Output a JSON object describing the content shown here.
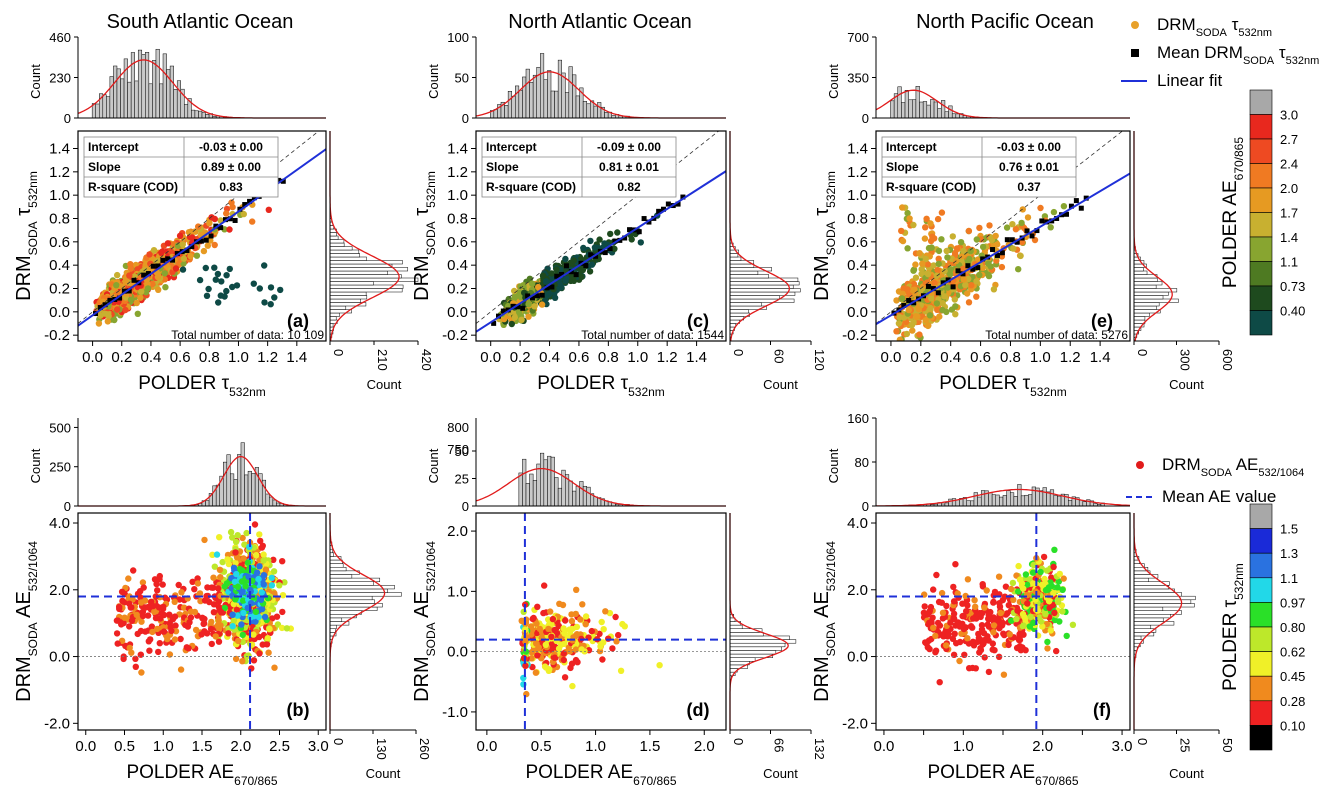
{
  "chart_data": [
    {
      "panel": "(a)",
      "title": "South Atlantic Ocean",
      "type": "scatter",
      "xlabel": "POLDER τ532nm",
      "ylabel": "DRMSODA τ532nm",
      "xlim": [
        -0.1,
        1.6
      ],
      "ylim": [
        -0.25,
        1.55
      ],
      "xticks": [
        0.0,
        0.2,
        0.4,
        0.6,
        0.8,
        1.0,
        1.2,
        1.4
      ],
      "yticks": [
        -0.2,
        0.0,
        0.2,
        0.4,
        0.6,
        0.8,
        1.0,
        1.2,
        1.4
      ],
      "fit_table": {
        "rows": [
          [
            "Intercept",
            "-0.03 ± 0.00"
          ],
          [
            "Slope",
            "0.89 ± 0.00"
          ],
          [
            "R-square (COD)",
            "0.83"
          ]
        ]
      },
      "fit_line": {
        "intercept": -0.03,
        "slope": 0.89
      },
      "total_label": "Total number of data: 10 109",
      "top_hist": {
        "ylabel": "Count",
        "yticks": [
          0,
          230,
          460
        ],
        "ymax": 460,
        "peak_x": 0.35,
        "peak_y": 330,
        "sigma": 0.2
      },
      "right_hist": {
        "xlabel": "Count",
        "xticks": [
          0,
          210,
          420
        ],
        "xmax": 420,
        "peak_y": 0.3,
        "peak_x": 330,
        "sigma": 0.18
      }
    },
    {
      "panel": "(c)",
      "title": "North Atlantic Ocean",
      "type": "scatter",
      "xlabel": "POLDER τ532nm",
      "ylabel": "DRMSODA τ532nm",
      "xlim": [
        -0.1,
        1.6
      ],
      "ylim": [
        -0.25,
        1.55
      ],
      "xticks": [
        0.0,
        0.2,
        0.4,
        0.6,
        0.8,
        1.0,
        1.2,
        1.4
      ],
      "yticks": [
        -0.2,
        0.0,
        0.2,
        0.4,
        0.6,
        0.8,
        1.0,
        1.2,
        1.4
      ],
      "fit_table": {
        "rows": [
          [
            "Intercept",
            "-0.09 ± 0.00"
          ],
          [
            "Slope",
            "0.81 ± 0.01"
          ],
          [
            "R-square (COD)",
            "0.82"
          ]
        ]
      },
      "fit_line": {
        "intercept": -0.09,
        "slope": 0.81
      },
      "total_label": "Total number of data: 1544",
      "top_hist": {
        "ylabel": "Count",
        "yticks": [
          0,
          50,
          100
        ],
        "ymax": 100,
        "peak_x": 0.4,
        "peak_y": 57,
        "sigma": 0.2
      },
      "right_hist": {
        "xlabel": "Count",
        "xticks": [
          0,
          60,
          120
        ],
        "xmax": 120,
        "peak_y": 0.2,
        "peak_x": 88,
        "sigma": 0.15
      }
    },
    {
      "panel": "(e)",
      "title": "North Pacific Ocean",
      "type": "scatter",
      "xlabel": "POLDER τ532nm",
      "ylabel": "DRMSODA τ532nm",
      "xlim": [
        -0.1,
        1.6
      ],
      "ylim": [
        -0.25,
        1.55
      ],
      "xticks": [
        0.0,
        0.2,
        0.4,
        0.6,
        0.8,
        1.0,
        1.2,
        1.4
      ],
      "yticks": [
        -0.2,
        0.0,
        0.2,
        0.4,
        0.6,
        0.8,
        1.0,
        1.2,
        1.4
      ],
      "fit_table": {
        "rows": [
          [
            "Intercept",
            "-0.03 ± 0.00"
          ],
          [
            "Slope",
            "0.76 ± 0.01"
          ],
          [
            "R-square (COD)",
            "0.37"
          ]
        ]
      },
      "fit_line": {
        "intercept": -0.03,
        "slope": 0.76
      },
      "total_label": "Total number of data: 5276",
      "top_hist": {
        "ylabel": "Count",
        "yticks": [
          0,
          350,
          700
        ],
        "ymax": 700,
        "peak_x": 0.15,
        "peak_y": 240,
        "sigma": 0.16
      },
      "right_hist": {
        "xlabel": "Count",
        "xticks": [
          0,
          300,
          600
        ],
        "xmax": 600,
        "peak_y": 0.15,
        "peak_x": 270,
        "sigma": 0.15
      }
    },
    {
      "panel": "(b)",
      "type": "scatter",
      "xlabel": "POLDER AE670/865",
      "ylabel": "DRMSODA AE532/1064",
      "xlim": [
        -0.1,
        3.1
      ],
      "ylim": [
        -2.2,
        4.3
      ],
      "xticks": [
        0.0,
        0.5,
        1.0,
        1.5,
        2.0,
        2.5,
        3.0
      ],
      "xticklabels": [
        "0.0",
        "0.5",
        "1.0",
        "1.5",
        "2.0",
        "2.5",
        "3.0"
      ],
      "yticks": [
        -2,
        0,
        2,
        4
      ],
      "yticklabels": [
        "-2.0",
        "0.0",
        "2.0",
        "4.0"
      ],
      "mean_x": 2.12,
      "mean_y": 1.8,
      "top_hist": {
        "ylabel": "Count",
        "yticks": [
          0,
          250,
          500
        ],
        "yticklabels": [
          "0",
          "250",
          "500"
        ],
        "ymax": 560,
        "peak_x": 2.0,
        "peak_y": 315,
        "sigma": 0.22
      },
      "right_hist": {
        "xlabel": "Count",
        "xticks": [
          0,
          130,
          260
        ],
        "xmax": 260,
        "peak_y": 1.9,
        "peak_x": 165,
        "sigma": 0.55
      }
    },
    {
      "panel": "(d)",
      "type": "scatter",
      "xlabel": "POLDER AE670/865",
      "ylabel": "DRMSODA AE532/1064",
      "xlim": [
        -0.1,
        2.2
      ],
      "ylim": [
        -1.3,
        2.3
      ],
      "xticks": [
        0.0,
        0.5,
        1.0,
        1.5,
        2.0
      ],
      "xticklabels": [
        "0.0",
        "0.5",
        "1.0",
        "1.5",
        "2.0"
      ],
      "yticks": [
        -1,
        0,
        1,
        2
      ],
      "yticklabels": [
        "-1.0",
        "0.0",
        "1.0",
        "2.0"
      ],
      "mean_x": 0.35,
      "mean_y": 0.2,
      "top_hist": {
        "ylabel": "Count",
        "yticks": [
          0,
          25,
          50,
          750,
          800
        ],
        "yticklabels": [
          "0",
          "25",
          "50",
          "750",
          "800"
        ],
        "ymax": 80,
        "peak_x": 0.5,
        "peak_y": 34,
        "sigma": 0.3
      },
      "right_hist": {
        "xlabel": "Count",
        "xticks": [
          0,
          66,
          132
        ],
        "xmax": 132,
        "peak_y": 0.1,
        "peak_x": 95,
        "sigma": 0.2
      }
    },
    {
      "panel": "(f)",
      "type": "scatter",
      "xlabel": "POLDER AE670/865",
      "ylabel": "DRMSODA AE532/1064",
      "xlim": [
        -0.1,
        3.1
      ],
      "ylim": [
        -2.2,
        4.3
      ],
      "xticks": [
        0.0,
        0.5,
        1.0,
        1.5,
        2.0,
        2.5,
        3.0
      ],
      "xticklabels": [
        "0.0",
        "",
        "1.0",
        "",
        "2.0",
        "",
        "3.0"
      ],
      "yticks": [
        -2,
        0,
        2,
        4
      ],
      "yticklabels": [
        "-2.0",
        "0.0",
        "2.0",
        "4.0"
      ],
      "mean_x": 1.92,
      "mean_y": 1.8,
      "top_hist": {
        "ylabel": "Count",
        "yticks": [
          0,
          80,
          160
        ],
        "yticklabels": [
          "0",
          "80",
          "160"
        ],
        "ymax": 160,
        "peak_x": 1.7,
        "peak_y": 30,
        "sigma": 0.55
      },
      "right_hist": {
        "xlabel": "Count",
        "xticks": [
          0,
          25,
          50
        ],
        "xmax": 50,
        "peak_y": 1.6,
        "peak_x": 28,
        "sigma": 0.6
      }
    }
  ],
  "legend_top": {
    "entries": [
      {
        "kind": "dot",
        "color": "#e8a12a",
        "label_main": "DRM",
        "label_sub": "SODA",
        "label_tail": " τ",
        "label_tail_sub": "532nm"
      },
      {
        "kind": "square",
        "color": "#000000",
        "label_main": "Mean DRM",
        "label_sub": "SODA",
        "label_tail": " τ",
        "label_tail_sub": "532nm"
      },
      {
        "kind": "line",
        "color": "#1f30d8",
        "label_main": "Linear fit",
        "label_sub": "",
        "label_tail": "",
        "label_tail_sub": ""
      }
    ]
  },
  "legend_bottom": {
    "entries": [
      {
        "kind": "dot",
        "color": "#e11b1b",
        "label_main": "DRM",
        "label_sub": "SODA",
        "label_tail": " AE",
        "label_tail_sub": "532/1064"
      },
      {
        "kind": "dash",
        "color": "#1f30d8",
        "label_main": "Mean AE value",
        "label_sub": "",
        "label_tail": "",
        "label_tail_sub": ""
      }
    ]
  },
  "colorbar_top": {
    "title": "POLDER AE670/865",
    "labels": [
      "3.0",
      "2.7",
      "2.4",
      "2.0",
      "1.7",
      "1.4",
      "1.1",
      "0.73",
      "0.40"
    ],
    "colors": [
      "#a8a8a8",
      "#e8281e",
      "#ee4a22",
      "#f07a22",
      "#e69a22",
      "#c8b030",
      "#88a530",
      "#4e7a22",
      "#1e4a1e",
      "#0e4a46"
    ]
  },
  "colorbar_bottom": {
    "title": "POLDER τ532nm",
    "labels": [
      "1.5",
      "1.3",
      "1.1",
      "0.97",
      "0.80",
      "0.62",
      "0.45",
      "0.28",
      "0.10"
    ],
    "colors": [
      "#a8a8a8",
      "#1a2ad8",
      "#2a72e0",
      "#22d8e8",
      "#2ae028",
      "#bde82a",
      "#f0f028",
      "#f08a1e",
      "#ee2222",
      "#000000"
    ]
  }
}
